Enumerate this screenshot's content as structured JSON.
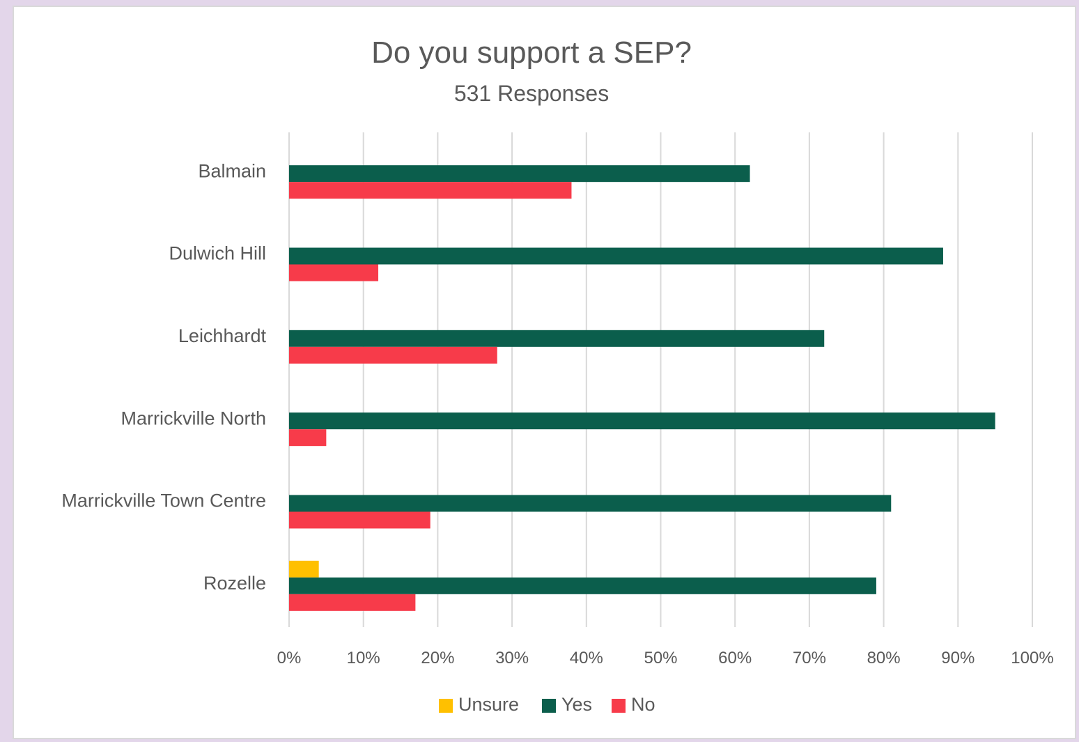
{
  "chart_data": {
    "type": "bar",
    "orientation": "horizontal",
    "title": "Do you support a SEP?",
    "subtitle": "531 Responses",
    "categories": [
      "Balmain",
      "Dulwich Hill",
      "Leichhardt",
      "Marrickville North",
      "Marrickville Town Centre",
      "Rozelle"
    ],
    "series": [
      {
        "name": "Unsure",
        "color": "#ffc000",
        "values": [
          0,
          0,
          0,
          0,
          0,
          4
        ]
      },
      {
        "name": "Yes",
        "color": "#0b5e4c",
        "values": [
          62,
          88,
          72,
          95,
          81,
          79
        ]
      },
      {
        "name": "No",
        "color": "#f73b4a",
        "values": [
          38,
          12,
          28,
          5,
          19,
          17
        ]
      }
    ],
    "x_ticks": [
      "0%",
      "10%",
      "20%",
      "30%",
      "40%",
      "50%",
      "60%",
      "70%",
      "80%",
      "90%",
      "100%"
    ],
    "xlim": [
      0,
      100
    ],
    "grid": true,
    "legend_position": "bottom"
  }
}
